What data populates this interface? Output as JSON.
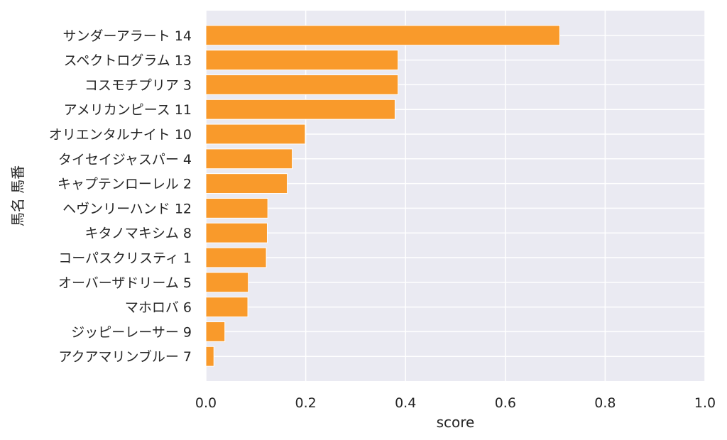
{
  "chart_data": {
    "type": "bar",
    "orientation": "horizontal",
    "categories": [
      "サンダーアラート 14",
      "スペクトログラム 13",
      "コスモチプリア 3",
      "アメリカンピース 11",
      "オリエンタルナイト 10",
      "タイセイジャスパー 4",
      "キャプテンローレル 2",
      "ヘヴンリーハンド 12",
      "キタノマキシム 8",
      "コーパスクリスティ 1",
      "オーバーザドリーム 5",
      "マホロバ 6",
      "ジッピーレーサー 9",
      "アクアマリンブルー 7"
    ],
    "values": [
      0.709,
      0.385,
      0.385,
      0.379,
      0.199,
      0.173,
      0.163,
      0.124,
      0.123,
      0.121,
      0.085,
      0.084,
      0.038,
      0.016
    ],
    "xlabel": "score",
    "ylabel": "馬名 馬番",
    "xlim": [
      0,
      1.0
    ],
    "xticks": [
      "0.0",
      "0.2",
      "0.4",
      "0.6",
      "0.8",
      "1.0"
    ],
    "grid": true,
    "colors": {
      "bar": "#f99a2b",
      "plot_background": "#eaeaf2",
      "grid": "#ffffff"
    }
  }
}
